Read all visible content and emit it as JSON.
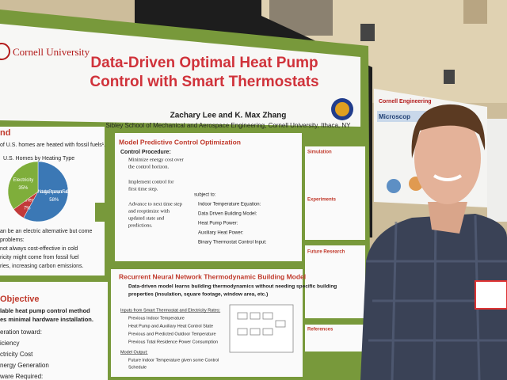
{
  "poster": {
    "institution": "Cornell University",
    "title_lines": [
      "Data-Driven Optimal Heat Pump",
      "Control with Smart Thermostats"
    ],
    "authors": "Zachary Lee and K. Max Zhang",
    "affiliation": "Sibley School of Mechanical and Aerospace Engineering, Cornell University, Ithaca, NY",
    "background": {
      "heading": "nd",
      "lines": [
        "of U.S. homes are heated with fossil fuels¹."
      ],
      "pie": {
        "title": "U.S. Homes by Heating Type",
        "names": [
          "Natural gas, Propane, and Fuel Oil",
          "Other",
          "Electricity"
        ],
        "values": [
          58,
          7,
          35
        ],
        "value_labels": [
          "58%",
          "7%",
          "35%"
        ],
        "colors": [
          "#3b78b5",
          "#c23a3a",
          "#7fae3b"
        ]
      },
      "after": [
        "an be an electric alternative but come",
        "problems:",
        "not always cost-effective in cold",
        "ricity might come from fossil fuel",
        "ries, increasing carbon emissions."
      ]
    },
    "objective": {
      "heading": "Objective",
      "lines": [
        "lable heat pump control method",
        "es minimal hardware installation."
      ],
      "items": [
        "eration toward:",
        "iciency",
        "ctricity Cost",
        "nergy Generation",
        "ware Required:"
      ]
    },
    "mpc": {
      "heading": "Model Predictive Control Optimization",
      "procedure": "Control Procedure:",
      "steps": [
        "Minimize energy cost over",
        "the control horizon.",
        "Implement control for",
        "first time step.",
        "Advance to next time step",
        "and reoptimize with",
        "updated state and",
        "predictions."
      ],
      "subject": "subject to:",
      "constraints": [
        "Indoor Temperature Equation:",
        "Data Driven Building Model:",
        "Heat Pump Power:",
        "Auxiliary Heat Power:",
        "Binary Thermostat Control Input:"
      ]
    },
    "rnn": {
      "heading": "Recurrent Neural Network Thermodynamic Building Model",
      "summary": [
        "Data-driven model learns building thermodynamics without needing specific building",
        "properties (insulation, square footage, window area, etc.)"
      ],
      "inputs_heading": "Inputs from Smart Thermostat and Electricity Rates:",
      "inputs": [
        "Previous Indoor Temperature",
        "Heat Pump and Auxiliary Heat Control State",
        "Previous and Predicted Outdoor Temperature",
        "Previous Total Residence Power Consumption"
      ],
      "output_heading": "Model Output:",
      "outputs": [
        "Future Indoor Temperature given some Control",
        "Schedule"
      ]
    },
    "side_sections": [
      "Simulation",
      "Experiments",
      "Future Research",
      "References"
    ],
    "neighbor_poster": [
      "Cornell Engineering",
      "Microscop"
    ]
  }
}
